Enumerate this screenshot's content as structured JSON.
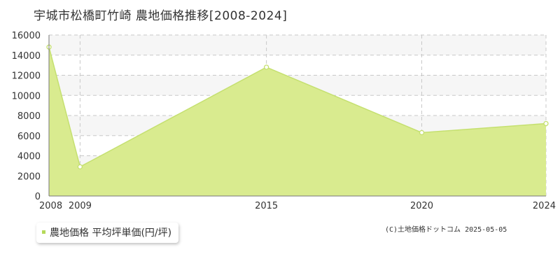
{
  "title": "宇城市松橋町竹崎 農地価格推移[2008-2024]",
  "legend_label": "農地価格 平均坪単価(円/坪)",
  "copyright": "(C)土地価格ドットコム 2025-05-05",
  "colors": {
    "area_fill": "#d9eb8f",
    "line": "#c5e070",
    "marker_stroke": "#c5e070",
    "band": "#f6f6f6",
    "grid": "#c8c8c8",
    "axis": "#777777"
  },
  "chart_data": {
    "type": "area",
    "title": "宇城市松橋町竹崎 農地価格推移[2008-2024]",
    "x": [
      "2008",
      "2009",
      "2015",
      "2020",
      "2024"
    ],
    "series": [
      {
        "name": "農地価格 平均坪単価(円/坪)",
        "values": [
          14800,
          2900,
          12800,
          6300,
          7200
        ]
      }
    ],
    "y_ticks": [
      "0",
      "2000",
      "4000",
      "6000",
      "8000",
      "10000",
      "12000",
      "14000",
      "16000"
    ],
    "ylim": [
      0,
      16000
    ],
    "grid": true,
    "legend_position": "bottom-left"
  }
}
